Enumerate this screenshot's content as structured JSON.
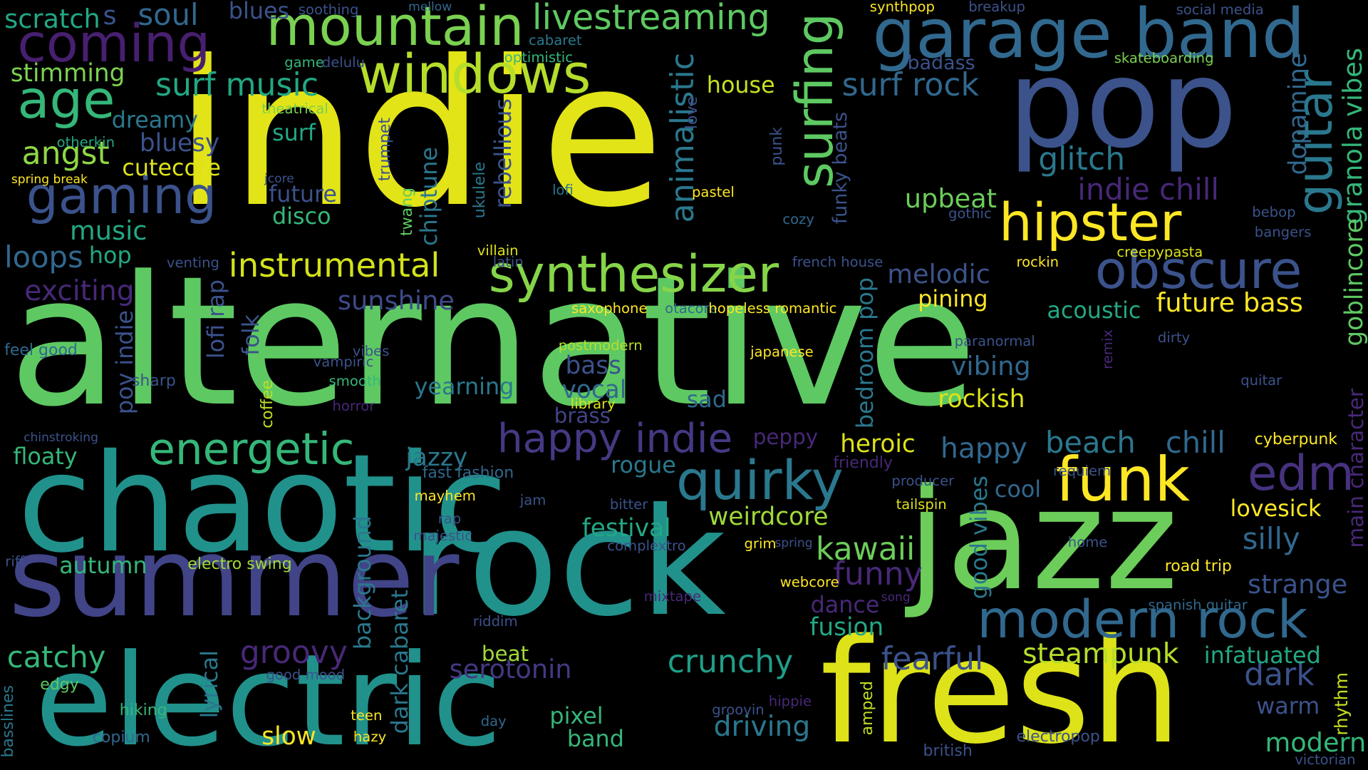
{
  "cloud": {
    "background": "#000000",
    "palette": "viridis",
    "words": [
      {
        "text": "indie",
        "color": "#e2e418"
      },
      {
        "text": "alternative",
        "color": "#5ec962"
      },
      {
        "text": "chaotic",
        "color": "#21918c"
      },
      {
        "text": "jazz",
        "color": "#6ccd5a"
      },
      {
        "text": "rock",
        "color": "#21918c"
      },
      {
        "text": "summer",
        "color": "#414487"
      },
      {
        "text": "electric",
        "color": "#21918c"
      },
      {
        "text": "fresh",
        "color": "#dde318"
      },
      {
        "text": "pop",
        "color": "#3b528b"
      },
      {
        "text": "garage band",
        "color": "#31688e"
      },
      {
        "text": "mountain",
        "color": "#7ad151"
      },
      {
        "text": "coming",
        "color": "#481f70"
      },
      {
        "text": "windows",
        "color": "#b5de2b"
      },
      {
        "text": "age",
        "color": "#35b779"
      },
      {
        "text": "hipster",
        "color": "#fde725"
      },
      {
        "text": "synthesizer",
        "color": "#86d549"
      },
      {
        "text": "obscure",
        "color": "#3b528b"
      },
      {
        "text": "surfing",
        "color": "#5ec962"
      },
      {
        "text": "gaming",
        "color": "#3b528b"
      },
      {
        "text": "funk",
        "color": "#fde725"
      },
      {
        "text": "quirky",
        "color": "#2a788e"
      },
      {
        "text": "edm",
        "color": "#46327e"
      },
      {
        "text": "modern rock",
        "color": "#31688e"
      },
      {
        "text": "energetic",
        "color": "#35b779"
      },
      {
        "text": "happy indie",
        "color": "#443983"
      },
      {
        "text": "guitar",
        "color": "#2a788e"
      },
      {
        "text": "livestreaming",
        "color": "#5ec962"
      },
      {
        "text": "surf music",
        "color": "#22a884"
      },
      {
        "text": "surf rock",
        "color": "#31688e"
      },
      {
        "text": "instrumental",
        "color": "#d2e21b"
      },
      {
        "text": "glitch",
        "color": "#2a788e"
      },
      {
        "text": "indie chill",
        "color": "#482878"
      },
      {
        "text": "animalistic",
        "color": "#2a788e"
      },
      {
        "text": "future bass",
        "color": "#fde725"
      },
      {
        "text": "kawaii",
        "color": "#6ccd5a"
      },
      {
        "text": "funny",
        "color": "#482878"
      },
      {
        "text": "weirdcore",
        "color": "#a0da39"
      },
      {
        "text": "steampunk",
        "color": "#b5de2b"
      },
      {
        "text": "groovy",
        "color": "#482878"
      },
      {
        "text": "serotonin",
        "color": "#443983"
      },
      {
        "text": "crunchy",
        "color": "#1f9e89"
      },
      {
        "text": "fearful",
        "color": "#3b528b"
      },
      {
        "text": "dark",
        "color": "#3b528b"
      },
      {
        "text": "catchy",
        "color": "#35b779"
      },
      {
        "text": "slow",
        "color": "#fde725"
      },
      {
        "text": "driving",
        "color": "#2a788e"
      },
      {
        "text": "modern",
        "color": "#35b779"
      },
      {
        "text": "angst",
        "color": "#8fd744"
      },
      {
        "text": "music",
        "color": "#22a884"
      },
      {
        "text": "loops",
        "color": "#31688e"
      },
      {
        "text": "exciting",
        "color": "#482878"
      },
      {
        "text": "scratch",
        "color": "#22a884"
      },
      {
        "text": "soul",
        "color": "#31688e"
      },
      {
        "text": "s",
        "color": "#3b528b"
      },
      {
        "text": "blues",
        "color": "#3b528b"
      },
      {
        "text": "stimming",
        "color": "#7ad151"
      },
      {
        "text": "dreamy",
        "color": "#2a788e"
      },
      {
        "text": "bluesy",
        "color": "#3b528b"
      },
      {
        "text": "cutecore",
        "color": "#dde318"
      },
      {
        "text": "surf",
        "color": "#22a884"
      },
      {
        "text": "future",
        "color": "#3b528b"
      },
      {
        "text": "disco",
        "color": "#35b779"
      },
      {
        "text": "hop",
        "color": "#22a884"
      },
      {
        "text": "house",
        "color": "#c8e020"
      },
      {
        "text": "upbeat",
        "color": "#6ccd5a"
      },
      {
        "text": "melodic",
        "color": "#3b528b"
      },
      {
        "text": "sunshine",
        "color": "#3e4a89"
      },
      {
        "text": "pining",
        "color": "#fde725"
      },
      {
        "text": "acoustic",
        "color": "#22a884"
      },
      {
        "text": "vibing",
        "color": "#31688e"
      },
      {
        "text": "rockish",
        "color": "#dde318"
      },
      {
        "text": "bass",
        "color": "#3b528b"
      },
      {
        "text": "vocal",
        "color": "#31688e"
      },
      {
        "text": "yearning",
        "color": "#2a788e"
      },
      {
        "text": "sad",
        "color": "#31688e"
      },
      {
        "text": "brass",
        "color": "#414487"
      },
      {
        "text": "heroic",
        "color": "#dde318"
      },
      {
        "text": "happy",
        "color": "#31688e"
      },
      {
        "text": "beach",
        "color": "#2a788e"
      },
      {
        "text": "chill",
        "color": "#31688e"
      },
      {
        "text": "jazzy",
        "color": "#2a788e"
      },
      {
        "text": "rogue",
        "color": "#2a788e"
      },
      {
        "text": "festival",
        "color": "#22a884"
      },
      {
        "text": "cool",
        "color": "#31688e"
      },
      {
        "text": "lovesick",
        "color": "#fde725"
      },
      {
        "text": "silly",
        "color": "#31688e"
      },
      {
        "text": "strange",
        "color": "#3b528b"
      },
      {
        "text": "dance",
        "color": "#482878"
      },
      {
        "text": "fusion",
        "color": "#22a884"
      },
      {
        "text": "autumn",
        "color": "#35b779"
      },
      {
        "text": "floaty",
        "color": "#35b779"
      },
      {
        "text": "beat",
        "color": "#a0da39"
      },
      {
        "text": "pixel",
        "color": "#35b779"
      },
      {
        "text": "band",
        "color": "#35b779"
      },
      {
        "text": "infatuated",
        "color": "#22a884"
      },
      {
        "text": "warm",
        "color": "#3b528b"
      },
      {
        "text": "lyrical",
        "color": "#2a788e"
      },
      {
        "text": "background",
        "color": "#2a788e"
      },
      {
        "text": "dark cabaret",
        "color": "#2a788e"
      },
      {
        "text": "bedroom pop",
        "color": "#2a788e"
      },
      {
        "text": "good vibes",
        "color": "#2a788e"
      },
      {
        "text": "pov indie",
        "color": "#3b528b"
      },
      {
        "text": "lofi rap",
        "color": "#3b528b"
      },
      {
        "text": "folk",
        "color": "#3b528b"
      },
      {
        "text": "chiptune",
        "color": "#2a788e"
      },
      {
        "text": "rebellious",
        "color": "#3b528b"
      },
      {
        "text": "funky beats",
        "color": "#3b528b"
      },
      {
        "text": "dopamine",
        "color": "#31688e"
      },
      {
        "text": "granola vibes",
        "color": "#35b779"
      },
      {
        "text": "goblincore",
        "color": "#5ec962"
      },
      {
        "text": "main character",
        "color": "#482878"
      },
      {
        "text": "rhythm",
        "color": "#c8e020"
      },
      {
        "text": "basslines",
        "color": "#2a788e"
      },
      {
        "text": "amped",
        "color": "#bddf26"
      },
      {
        "text": "ukulele",
        "color": "#2a788e"
      },
      {
        "text": "twang",
        "color": "#5ec962"
      },
      {
        "text": "trumpet",
        "color": "#3b528b"
      },
      {
        "text": "love",
        "color": "#3b528b"
      },
      {
        "text": "punk",
        "color": "#3b528b"
      },
      {
        "text": "remix",
        "color": "#482878"
      },
      {
        "text": "coffee",
        "color": "#bddf26"
      },
      {
        "text": "soothing",
        "color": "#3b528b"
      },
      {
        "text": "mellow",
        "color": "#31688e"
      },
      {
        "text": "synthpop",
        "color": "#fde725"
      },
      {
        "text": "breakup",
        "color": "#3b528b"
      },
      {
        "text": "social media",
        "color": "#3b528b"
      },
      {
        "text": "cabaret",
        "color": "#2a788e"
      },
      {
        "text": "optimistic",
        "color": "#35b779"
      },
      {
        "text": "game",
        "color": "#35b779"
      },
      {
        "text": "delulu",
        "color": "#3b528b"
      },
      {
        "text": "badass",
        "color": "#3b528b"
      },
      {
        "text": "skateboarding",
        "color": "#7ad151"
      },
      {
        "text": "theatrical",
        "color": "#7ad151"
      },
      {
        "text": "otherkin",
        "color": "#22a884"
      },
      {
        "text": "spring break",
        "color": "#fde725"
      },
      {
        "text": "jcore",
        "color": "#3b528b"
      },
      {
        "text": "lofi",
        "color": "#2a788e"
      },
      {
        "text": "pastel",
        "color": "#fde725"
      },
      {
        "text": "cozy",
        "color": "#31688e"
      },
      {
        "text": "gothic",
        "color": "#3b528b"
      },
      {
        "text": "bebop",
        "color": "#3b528b"
      },
      {
        "text": "bangers",
        "color": "#3b528b"
      },
      {
        "text": "venting",
        "color": "#3b528b"
      },
      {
        "text": "villain",
        "color": "#dde318"
      },
      {
        "text": "latin",
        "color": "#3b528b"
      },
      {
        "text": "french house",
        "color": "#3b528b"
      },
      {
        "text": "rockin",
        "color": "#fde725"
      },
      {
        "text": "creepypasta",
        "color": "#dde318"
      },
      {
        "text": "saxophone",
        "color": "#fde725"
      },
      {
        "text": "otacore",
        "color": "#31688e"
      },
      {
        "text": "hopeless romantic",
        "color": "#fde725"
      },
      {
        "text": "feel good",
        "color": "#31688e"
      },
      {
        "text": "vibes",
        "color": "#3b528b"
      },
      {
        "text": "vampiric",
        "color": "#3b528b"
      },
      {
        "text": "postmodern",
        "color": "#b5de2b"
      },
      {
        "text": "japanese",
        "color": "#fde725"
      },
      {
        "text": "paranormal",
        "color": "#3b528b"
      },
      {
        "text": "dirty",
        "color": "#3b528b"
      },
      {
        "text": "quitar",
        "color": "#3b528b"
      },
      {
        "text": "sharp",
        "color": "#3b528b"
      },
      {
        "text": "smooth",
        "color": "#35b779"
      },
      {
        "text": "library",
        "color": "#dde318"
      },
      {
        "text": "horror",
        "color": "#482878"
      },
      {
        "text": "chinstroking",
        "color": "#3b528b"
      },
      {
        "text": "peppy",
        "color": "#482878"
      },
      {
        "text": "friendly",
        "color": "#482878"
      },
      {
        "text": "cyberpunk",
        "color": "#fde725"
      },
      {
        "text": "fast fashion",
        "color": "#31688e"
      },
      {
        "text": "producer",
        "color": "#3b528b"
      },
      {
        "text": "requiem",
        "color": "#3b528b"
      },
      {
        "text": "mayhem",
        "color": "#fde725"
      },
      {
        "text": "jam",
        "color": "#3b528b"
      },
      {
        "text": "bitter",
        "color": "#3b528b"
      },
      {
        "text": "tailspin",
        "color": "#dde318"
      },
      {
        "text": "rap",
        "color": "#3b528b"
      },
      {
        "text": "majestic",
        "color": "#3b528b"
      },
      {
        "text": "riff",
        "color": "#3b528b"
      },
      {
        "text": "electro swing",
        "color": "#a0da39"
      },
      {
        "text": "complextro",
        "color": "#3b528b"
      },
      {
        "text": "grim",
        "color": "#fde725"
      },
      {
        "text": "spring",
        "color": "#3b528b"
      },
      {
        "text": "home",
        "color": "#3b528b"
      },
      {
        "text": "road trip",
        "color": "#fde725"
      },
      {
        "text": "webcore",
        "color": "#fde725"
      },
      {
        "text": "mixtape",
        "color": "#482878"
      },
      {
        "text": "song",
        "color": "#482878"
      },
      {
        "text": "spanish guitar",
        "color": "#31688e"
      },
      {
        "text": "riddim",
        "color": "#3b528b"
      },
      {
        "text": "edgy",
        "color": "#5ec962"
      },
      {
        "text": "good mood",
        "color": "#3b528b"
      },
      {
        "text": "hiking",
        "color": "#35b779"
      },
      {
        "text": "groovin",
        "color": "#3b528b"
      },
      {
        "text": "hippie",
        "color": "#482878"
      },
      {
        "text": "day",
        "color": "#31688e"
      },
      {
        "text": "teen",
        "color": "#fde725"
      },
      {
        "text": "hazy",
        "color": "#fde725"
      },
      {
        "text": "copium",
        "color": "#31688e"
      },
      {
        "text": "electropop",
        "color": "#3b528b"
      },
      {
        "text": "british",
        "color": "#3b528b"
      },
      {
        "text": "victorian",
        "color": "#3b528b"
      }
    ]
  }
}
